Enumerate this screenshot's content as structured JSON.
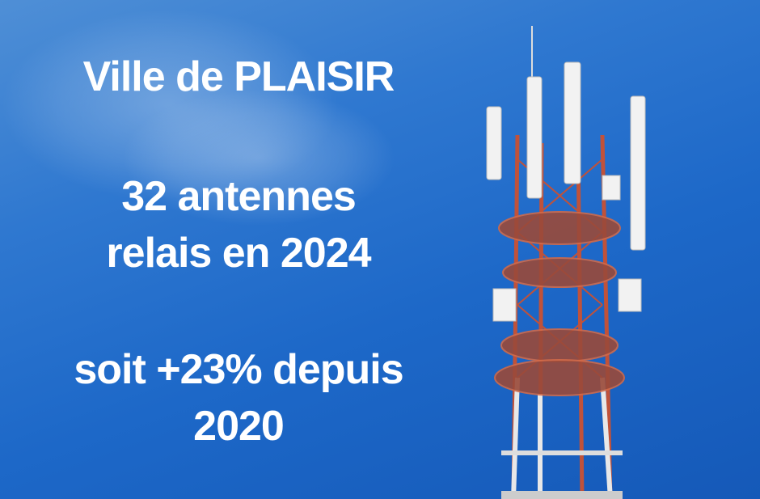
{
  "overlay": {
    "city": "Ville de PLAISIR",
    "line1": "32 antennes",
    "line2": "relais en 2024",
    "line3": "soit +23% depuis",
    "line4": "2020"
  },
  "colors": {
    "sky": "#1d68c8",
    "text": "#ffffff",
    "tower_red": "#c0523a",
    "tower_white": "#f2f2f2"
  }
}
